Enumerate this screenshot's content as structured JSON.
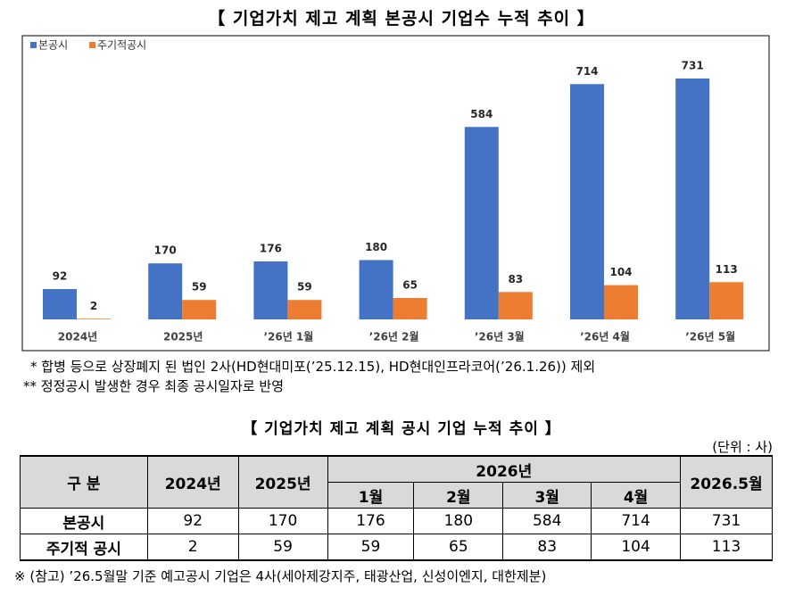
{
  "title": "【 기업가치 제고 계획 본공시 기업수 누적 추이 】",
  "chart_data": {
    "type": "bar",
    "categories": [
      "2024년",
      "2025년",
      "’26년 1월",
      "’26년 2월",
      "’26년 3월",
      "’26년 4월",
      "’26년 5월"
    ],
    "series": [
      {
        "name": "본공시",
        "color": "#4472c4",
        "values": [
          92,
          170,
          176,
          180,
          584,
          714,
          731
        ]
      },
      {
        "name": "주기적공시",
        "color": "#ed7d31",
        "values": [
          2,
          59,
          59,
          65,
          83,
          104,
          113
        ]
      }
    ],
    "legend": "top-left"
  },
  "notes": [
    "* 합병 등으로 상장폐지 된 법인 2사(HD현대미포(’25.12.15), HD현대인프라코어(’26.1.26)) 제외",
    "** 정정공시 발생한 경우 최종 공시일자로 반영"
  ],
  "table": {
    "title": "【 기업가치 제고 계획 공시 기업 누적 추이 】",
    "unit": "(단위 : 사)",
    "header": {
      "label": "구 분",
      "years": [
        "2024년",
        "2025년"
      ],
      "group": "2026년",
      "months": [
        "1월",
        "2월",
        "3월",
        "4월"
      ],
      "last": "2026.5월"
    },
    "rows": [
      {
        "label": "본공시",
        "values": [
          92,
          170,
          176,
          180,
          584,
          714,
          731
        ]
      },
      {
        "label": "주기적 공시",
        "values": [
          2,
          59,
          59,
          65,
          83,
          104,
          113
        ]
      }
    ]
  },
  "footnote": "※ (참고) ’26.5월말 기준 예고공시 기업은 4사(세아제강지주, 태광산업, 신성이엔지, 대한제분)"
}
